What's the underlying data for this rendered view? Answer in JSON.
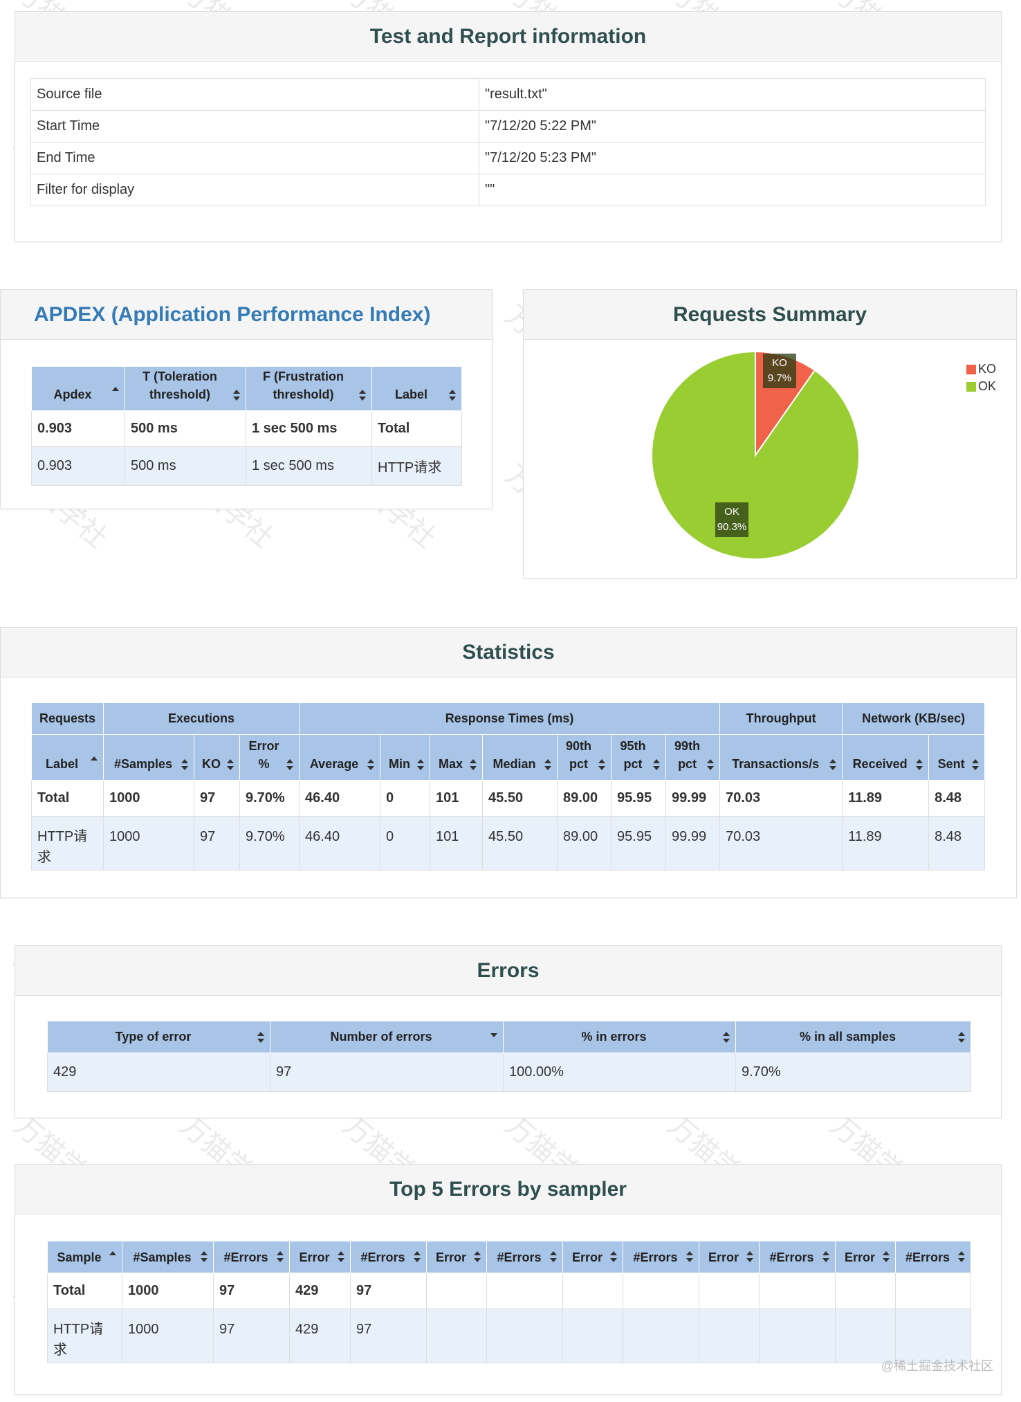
{
  "info": {
    "title": "Test and Report information",
    "rows": [
      {
        "label": "Source file",
        "value": "\"result.txt\""
      },
      {
        "label": "Start Time",
        "value": "\"7/12/20 5:22 PM\""
      },
      {
        "label": "End Time",
        "value": "\"7/12/20 5:23 PM\""
      },
      {
        "label": "Filter for display",
        "value": "\"\""
      }
    ]
  },
  "apdex": {
    "title": "APDEX (Application Performance Index)",
    "headers": [
      "Apdex",
      "T (Toleration threshold)",
      "F (Frustration threshold)",
      "Label"
    ],
    "rows": [
      [
        "0.903",
        "500 ms",
        "1 sec 500 ms",
        "Total"
      ],
      [
        "0.903",
        "500 ms",
        "1 sec 500 ms",
        "HTTP请求"
      ]
    ]
  },
  "summary": {
    "title": "Requests Summary",
    "colors": {
      "ko": "#f0624a",
      "ok": "#9acd32"
    },
    "legend": [
      "KO",
      "OK"
    ],
    "ko_label": "KO",
    "ko_pct": "9.7%",
    "ok_label": "OK",
    "ok_pct": "90.3%"
  },
  "chart_data": {
    "type": "pie",
    "title": "Requests Summary",
    "categories": [
      "KO",
      "OK"
    ],
    "values": [
      9.7,
      90.3
    ],
    "legend_position": "top-right"
  },
  "statistics": {
    "title": "Statistics",
    "groups": [
      "Requests",
      "Executions",
      "Response Times (ms)",
      "Throughput",
      "Network (KB/sec)"
    ],
    "headers": [
      "Label",
      "#Samples",
      "KO",
      "Error %",
      "Average",
      "Min",
      "Max",
      "Median",
      "90th pct",
      "95th pct",
      "99th pct",
      "Transactions/s",
      "Received",
      "Sent"
    ],
    "rows": [
      [
        "Total",
        "1000",
        "97",
        "9.70%",
        "46.40",
        "0",
        "101",
        "45.50",
        "89.00",
        "95.95",
        "99.99",
        "70.03",
        "11.89",
        "8.48"
      ],
      [
        "HTTP请求",
        "1000",
        "97",
        "9.70%",
        "46.40",
        "0",
        "101",
        "45.50",
        "89.00",
        "95.95",
        "99.99",
        "70.03",
        "11.89",
        "8.48"
      ]
    ]
  },
  "errors": {
    "title": "Errors",
    "headers": [
      "Type of error",
      "Number of errors",
      "% in errors",
      "% in all samples"
    ],
    "rows": [
      [
        "429",
        "97",
        "100.00%",
        "9.70%"
      ]
    ]
  },
  "top5": {
    "title": "Top 5 Errors by sampler",
    "headers": [
      "Sample",
      "#Samples",
      "#Errors",
      "Error",
      "#Errors",
      "Error",
      "#Errors",
      "Error",
      "#Errors",
      "Error",
      "#Errors",
      "Error",
      "#Errors"
    ],
    "rows": [
      [
        "Total",
        "1000",
        "97",
        "429",
        "97",
        "",
        "",
        "",
        "",
        "",
        "",
        "",
        ""
      ],
      [
        "HTTP请求",
        "1000",
        "97",
        "429",
        "97",
        "",
        "",
        "",
        "",
        "",
        "",
        "",
        ""
      ]
    ]
  },
  "watermark_text": "万猫学社",
  "credit": "@稀土掘金技术社区"
}
